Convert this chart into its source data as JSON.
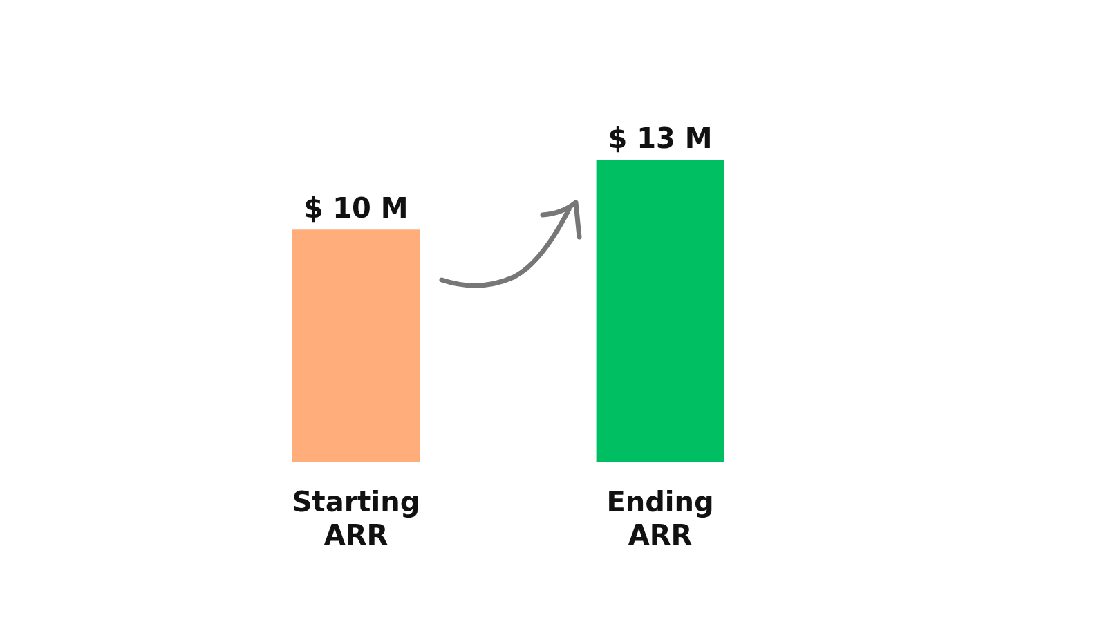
{
  "chart_data": {
    "type": "bar",
    "categories": [
      "Starting ARR",
      "Ending ARR"
    ],
    "values": [
      10,
      13
    ],
    "colors": [
      "#ffae7b",
      "#00bf63"
    ],
    "value_labels": [
      "$ 10 M",
      "$ 13 M"
    ]
  }
}
